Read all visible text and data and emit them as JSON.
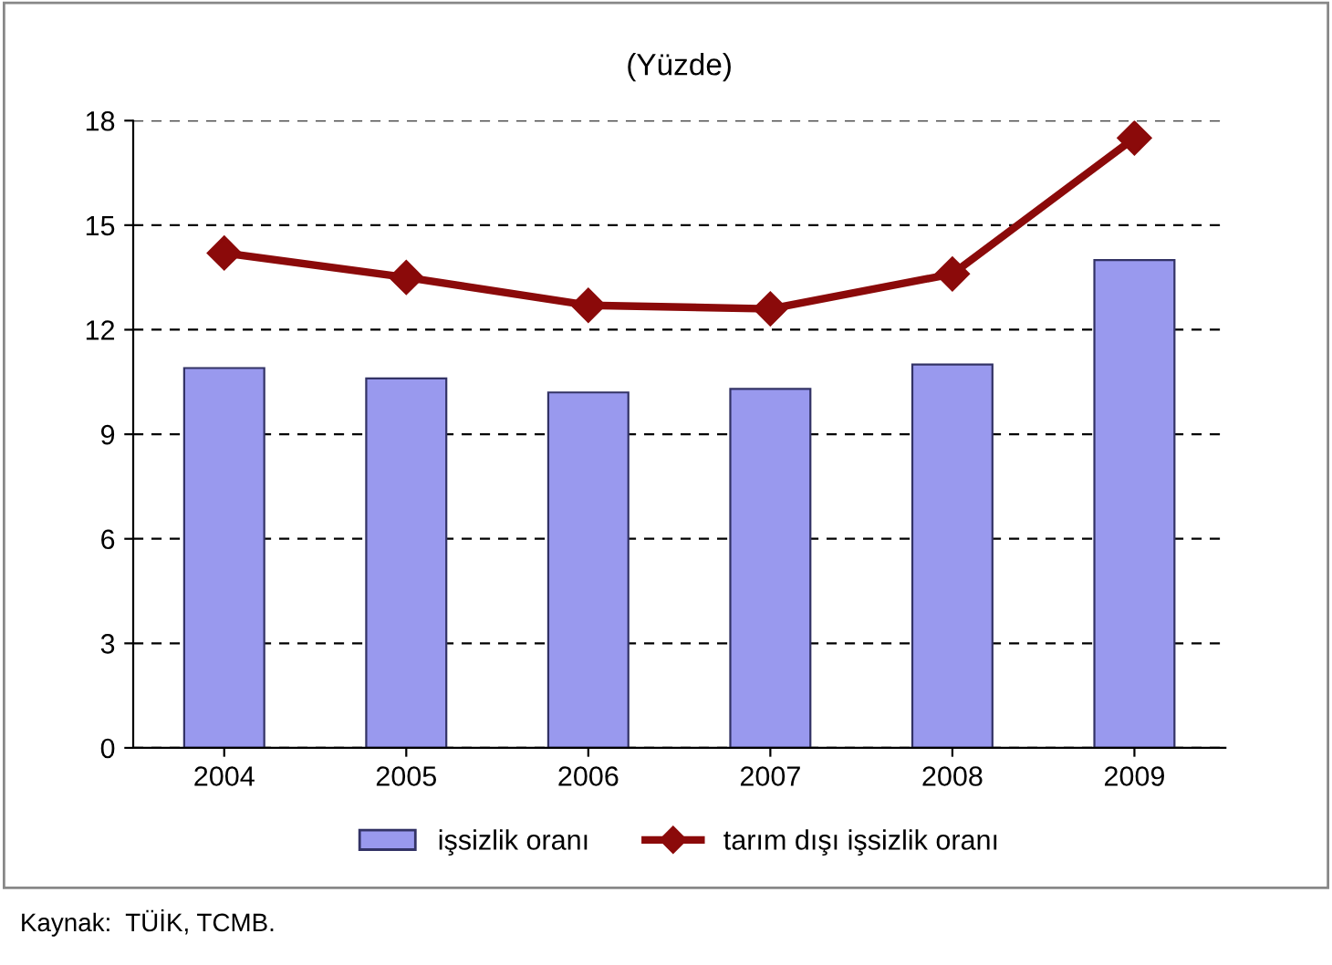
{
  "chart_data": {
    "type": "bar",
    "title": "(Yüzde)",
    "categories": [
      "2004",
      "2005",
      "2006",
      "2007",
      "2008",
      "2009"
    ],
    "series": [
      {
        "name": "işsizlik oranı",
        "color": "#9999ee",
        "values": [
          10.9,
          10.6,
          10.2,
          10.3,
          11.0,
          14.0
        ]
      },
      {
        "name": "tarım dışı işsizlik oranı",
        "type": "line",
        "color": "#8b0a0a",
        "values": [
          14.2,
          13.5,
          12.7,
          12.6,
          13.6,
          17.5
        ],
        "marker": "diamond"
      }
    ],
    "ylim": [
      0,
      18
    ],
    "yticks": [
      0,
      3,
      6,
      9,
      12,
      15,
      18
    ],
    "grid": "y",
    "legend": "bottom",
    "annotations": [
      "Kaynak:  TÜİK, TCMB."
    ]
  }
}
